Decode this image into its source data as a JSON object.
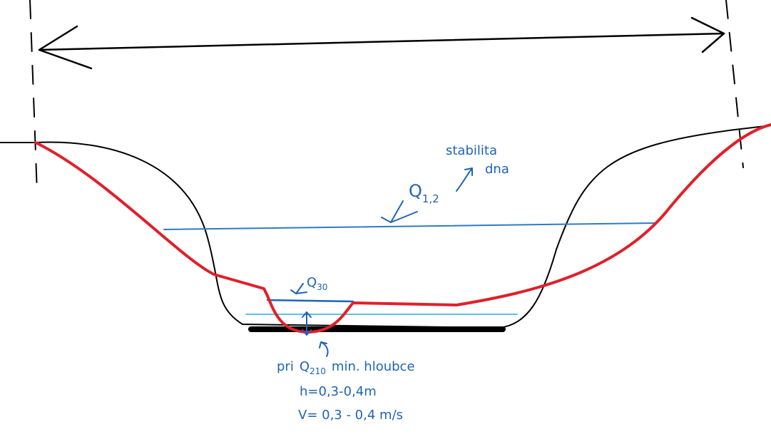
{
  "labels": {
    "stability_line1": "stabilita",
    "stability_line2": "dna",
    "q_high": {
      "symbol": "Q",
      "subscript": "1,2"
    },
    "q_30": {
      "symbol": "Q",
      "subscript": "30"
    },
    "low_flow": {
      "prefix": "pri",
      "symbol": "Q",
      "subscript": "210",
      "suffix": "min. hloubce"
    },
    "depth": "h=0,3-0,4m",
    "velocity": "V= 0,3 - 0,4 m/s"
  }
}
